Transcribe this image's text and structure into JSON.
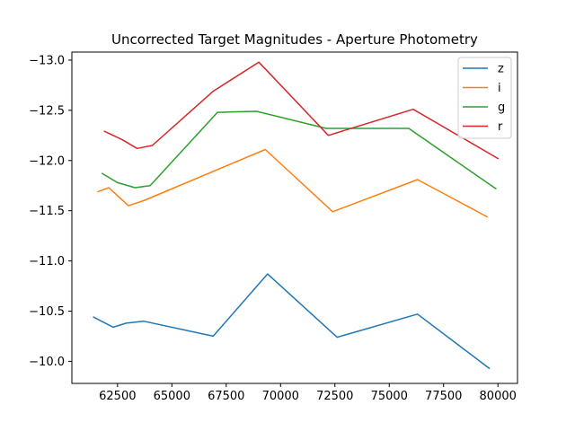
{
  "chart_data": {
    "type": "line",
    "title": "Uncorrected Target Magnitudes - Aperture Photometry",
    "xlabel": "",
    "ylabel": "",
    "xlim": [
      60400,
      80900
    ],
    "ylim": [
      -9.78,
      -13.08
    ],
    "y_inverted": true,
    "x_ticks": [
      {
        "value": 62500,
        "label": "62500"
      },
      {
        "value": 65000,
        "label": "65000"
      },
      {
        "value": 67500,
        "label": "67500"
      },
      {
        "value": 70000,
        "label": "70000"
      },
      {
        "value": 72500,
        "label": "72500"
      },
      {
        "value": 75000,
        "label": "75000"
      },
      {
        "value": 77500,
        "label": "77500"
      },
      {
        "value": 80000,
        "label": "80000"
      }
    ],
    "y_ticks": [
      {
        "value": -13.0,
        "label": "−13.0"
      },
      {
        "value": -12.5,
        "label": "−12.5"
      },
      {
        "value": -12.0,
        "label": "−12.0"
      },
      {
        "value": -11.5,
        "label": "−11.5"
      },
      {
        "value": -11.0,
        "label": "−11.0"
      },
      {
        "value": -10.5,
        "label": "−10.5"
      },
      {
        "value": -10.0,
        "label": "−10.0"
      }
    ],
    "grid": false,
    "legend_position": "top-right",
    "series": [
      {
        "name": "z",
        "color": "#1f77b4",
        "x": [
          61400,
          62300,
          62900,
          63700,
          66900,
          69400,
          72600,
          76300,
          79600
        ],
        "y": [
          -10.44,
          -10.34,
          -10.38,
          -10.4,
          -10.25,
          -10.87,
          -10.24,
          -10.47,
          -9.93
        ]
      },
      {
        "name": "i",
        "color": "#ff7f0e",
        "x": [
          61600,
          62100,
          63000,
          63700,
          69300,
          72400,
          76300,
          79500
        ],
        "y": [
          -11.69,
          -11.73,
          -11.55,
          -11.6,
          -12.11,
          -11.49,
          -11.81,
          -11.44
        ]
      },
      {
        "name": "g",
        "color": "#2ca02c",
        "x": [
          61800,
          62500,
          63300,
          64000,
          67100,
          68900,
          72100,
          75900,
          79900
        ],
        "y": [
          -11.87,
          -11.78,
          -11.73,
          -11.75,
          -12.48,
          -12.49,
          -12.32,
          -12.32,
          -11.72
        ]
      },
      {
        "name": "r",
        "color": "#d62728",
        "x": [
          61900,
          62700,
          63400,
          64100,
          66900,
          69000,
          72200,
          76100,
          80000
        ],
        "y": [
          -12.29,
          -12.21,
          -12.12,
          -12.15,
          -12.69,
          -12.98,
          -12.25,
          -12.51,
          -12.02
        ]
      }
    ]
  }
}
